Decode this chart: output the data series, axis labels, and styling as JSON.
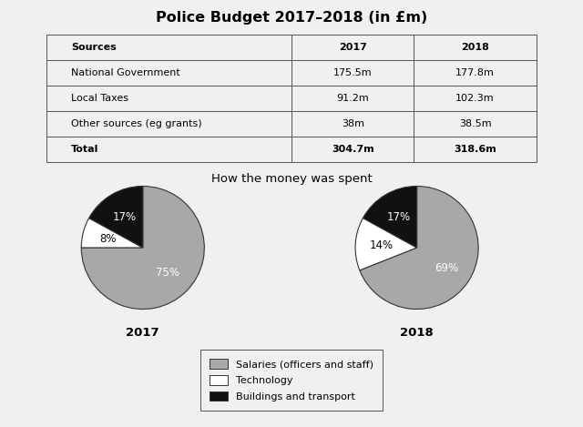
{
  "title": "Police Budget 2017–2018 (in £m)",
  "table": {
    "headers": [
      "Sources",
      "2017",
      "2018"
    ],
    "rows": [
      [
        "National Government",
        "175.5m",
        "177.8m"
      ],
      [
        "Local Taxes",
        "91.2m",
        "102.3m"
      ],
      [
        "Other sources (eg grants)",
        "38m",
        "38.5m"
      ],
      [
        "Total",
        "304.7m",
        "318.6m"
      ]
    ]
  },
  "pie_title": "How the money was spent",
  "pie_2017": {
    "label": "2017",
    "values": [
      75,
      8,
      17
    ],
    "colors": [
      "#a8a8a8",
      "#ffffff",
      "#111111"
    ],
    "labels": [
      "75%",
      "8%",
      "17%"
    ],
    "startangle": 90,
    "label_colors": [
      "white",
      "black",
      "white"
    ]
  },
  "pie_2018": {
    "label": "2018",
    "values": [
      69,
      14,
      17
    ],
    "colors": [
      "#a8a8a8",
      "#ffffff",
      "#111111"
    ],
    "labels": [
      "69%",
      "14%",
      "17%"
    ],
    "startangle": 90,
    "label_colors": [
      "white",
      "black",
      "white"
    ]
  },
  "legend_items": [
    {
      "label": "Salaries (officers and staff)",
      "color": "#a8a8a8"
    },
    {
      "label": "Technology",
      "color": "#ffffff"
    },
    {
      "label": "Buildings and transport",
      "color": "#111111"
    }
  ],
  "background_color": "#f0f0f0",
  "table_bg": "#f0f0f0"
}
